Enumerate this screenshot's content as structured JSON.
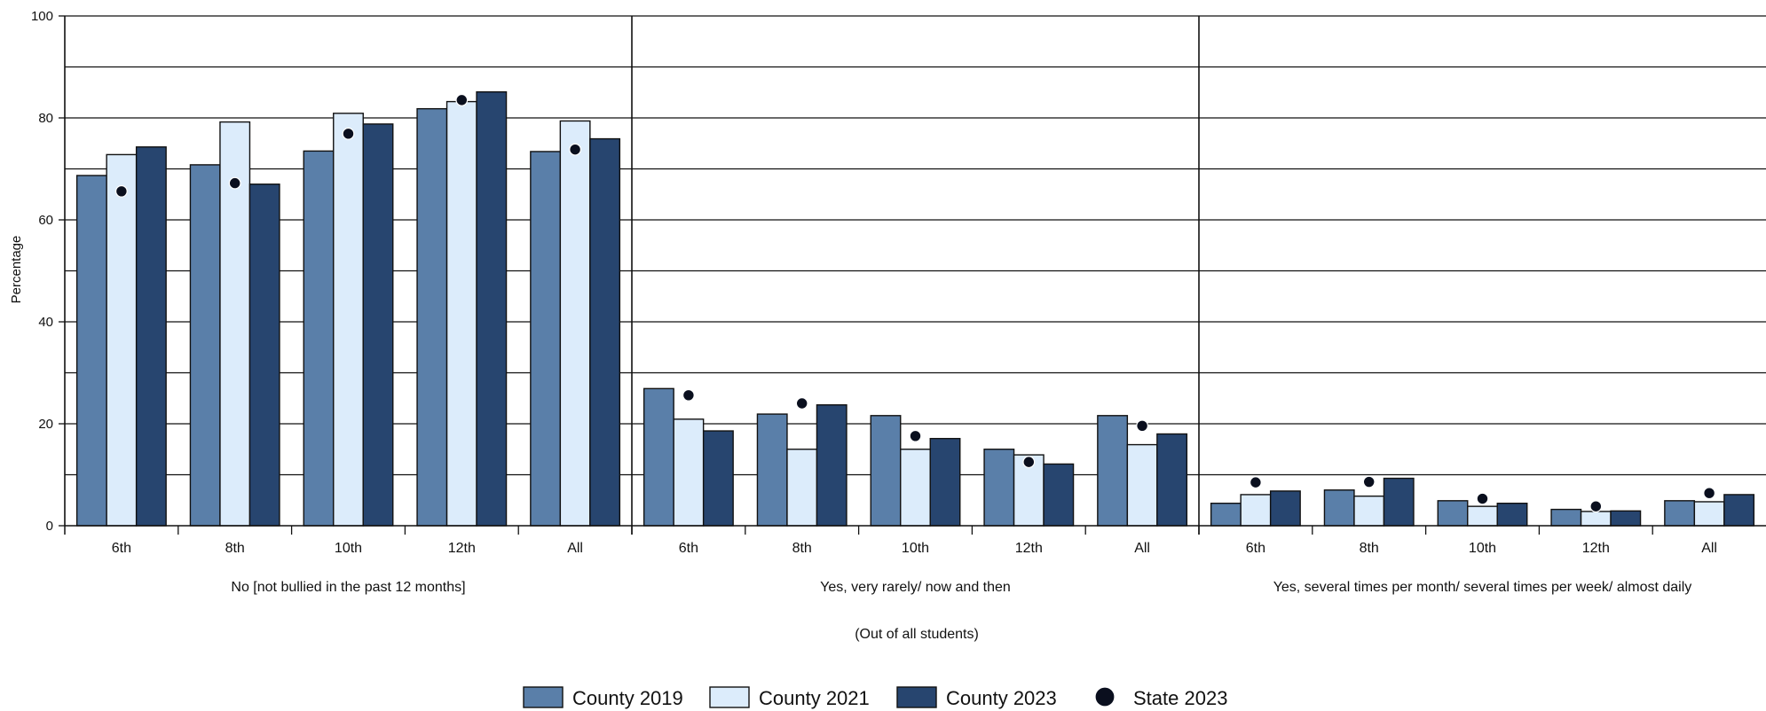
{
  "chart_data": {
    "type": "bar",
    "title": "",
    "ylabel": "Percentage",
    "xlabel": "(Out of all students)",
    "ylim": [
      0,
      100
    ],
    "yticks": [
      0,
      20,
      40,
      60,
      80,
      100
    ],
    "grid": true,
    "legend_position": "bottom",
    "groups": [
      {
        "label": "No [not bullied in the past 12 months]",
        "categories": [
          "6th",
          "8th",
          "10th",
          "12th",
          "All"
        ],
        "series": [
          {
            "name": "County 2019",
            "values": [
              68.7,
              70.8,
              73.5,
              81.8,
              73.4
            ]
          },
          {
            "name": "County 2021",
            "values": [
              72.8,
              79.2,
              80.9,
              83.2,
              79.4
            ]
          },
          {
            "name": "County 2023",
            "values": [
              74.3,
              67.0,
              78.8,
              85.1,
              75.9
            ]
          },
          {
            "name": "State 2023",
            "values": [
              65.6,
              67.2,
              76.9,
              83.5,
              73.8
            ]
          }
        ]
      },
      {
        "label": "Yes, very rarely/ now and then",
        "categories": [
          "6th",
          "8th",
          "10th",
          "12th",
          "All"
        ],
        "series": [
          {
            "name": "County 2019",
            "values": [
              26.9,
              21.9,
              21.6,
              15.0,
              21.6
            ]
          },
          {
            "name": "County 2021",
            "values": [
              20.9,
              15.0,
              15.0,
              13.9,
              15.9
            ]
          },
          {
            "name": "County 2023",
            "values": [
              18.6,
              23.7,
              17.1,
              12.1,
              18.0
            ]
          },
          {
            "name": "State 2023",
            "values": [
              25.6,
              24.0,
              17.6,
              12.5,
              19.6
            ]
          }
        ]
      },
      {
        "label": "Yes, several times per month/ several times per week/ almost daily",
        "categories": [
          "6th",
          "8th",
          "10th",
          "12th",
          "All"
        ],
        "series": [
          {
            "name": "County 2019",
            "values": [
              4.4,
              7.0,
              4.9,
              3.2,
              4.9
            ]
          },
          {
            "name": "County 2021",
            "values": [
              6.1,
              5.8,
              3.8,
              2.8,
              4.7
            ]
          },
          {
            "name": "County 2023",
            "values": [
              6.8,
              9.3,
              4.4,
              2.9,
              6.1
            ]
          },
          {
            "name": "State 2023",
            "values": [
              8.5,
              8.6,
              5.3,
              3.8,
              6.4
            ]
          }
        ]
      }
    ],
    "legend": [
      {
        "name": "County 2019",
        "kind": "bar",
        "color": "#5a7fa9"
      },
      {
        "name": "County 2021",
        "kind": "bar",
        "color": "#dcecfb"
      },
      {
        "name": "County 2023",
        "kind": "bar",
        "color": "#27456f"
      },
      {
        "name": "State 2023",
        "kind": "dot",
        "color": "#0a0f1e"
      }
    ],
    "colors": {
      "county_2019": "#5a7fa9",
      "county_2021": "#dcecfb",
      "county_2023": "#27456f",
      "state_2023": "#0a0f1e",
      "axis": "#111111"
    }
  }
}
